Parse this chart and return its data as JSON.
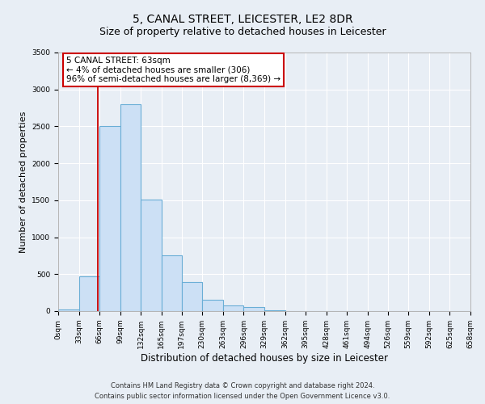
{
  "title": "5, CANAL STREET, LEICESTER, LE2 8DR",
  "subtitle": "Size of property relative to detached houses in Leicester",
  "xlabel": "Distribution of detached houses by size in Leicester",
  "ylabel": "Number of detached properties",
  "bin_edges": [
    0,
    33,
    66,
    99,
    132,
    165,
    197,
    230,
    263,
    296,
    329,
    362,
    395,
    428,
    461,
    494,
    526,
    559,
    592,
    625,
    658
  ],
  "bin_labels": [
    "0sqm",
    "33sqm",
    "66sqm",
    "99sqm",
    "132sqm",
    "165sqm",
    "197sqm",
    "230sqm",
    "263sqm",
    "296sqm",
    "329sqm",
    "362sqm",
    "395sqm",
    "428sqm",
    "461sqm",
    "494sqm",
    "526sqm",
    "559sqm",
    "592sqm",
    "625sqm",
    "658sqm"
  ],
  "bar_heights": [
    25,
    470,
    2510,
    2800,
    1510,
    750,
    390,
    150,
    75,
    50,
    15,
    0,
    0,
    0,
    0,
    0,
    0,
    0,
    0,
    0
  ],
  "bar_color": "#cce0f5",
  "bar_edge_color": "#6aaed6",
  "property_line_x": 63,
  "property_line_color": "#cc0000",
  "ylim": [
    0,
    3500
  ],
  "yticks": [
    0,
    500,
    1000,
    1500,
    2000,
    2500,
    3000,
    3500
  ],
  "annotation_title": "5 CANAL STREET: 63sqm",
  "annotation_line1": "← 4% of detached houses are smaller (306)",
  "annotation_line2": "96% of semi-detached houses are larger (8,369) →",
  "annotation_box_color": "white",
  "annotation_box_edge_color": "#cc0000",
  "footer_line1": "Contains HM Land Registry data © Crown copyright and database right 2024.",
  "footer_line2": "Contains public sector information licensed under the Open Government Licence v3.0.",
  "background_color": "#e8eef5",
  "plot_bg_color": "#e8eef5",
  "grid_color": "#ffffff",
  "title_fontsize": 10,
  "subtitle_fontsize": 9,
  "xlabel_fontsize": 8.5,
  "ylabel_fontsize": 8,
  "tick_fontsize": 6.5,
  "footer_fontsize": 6
}
